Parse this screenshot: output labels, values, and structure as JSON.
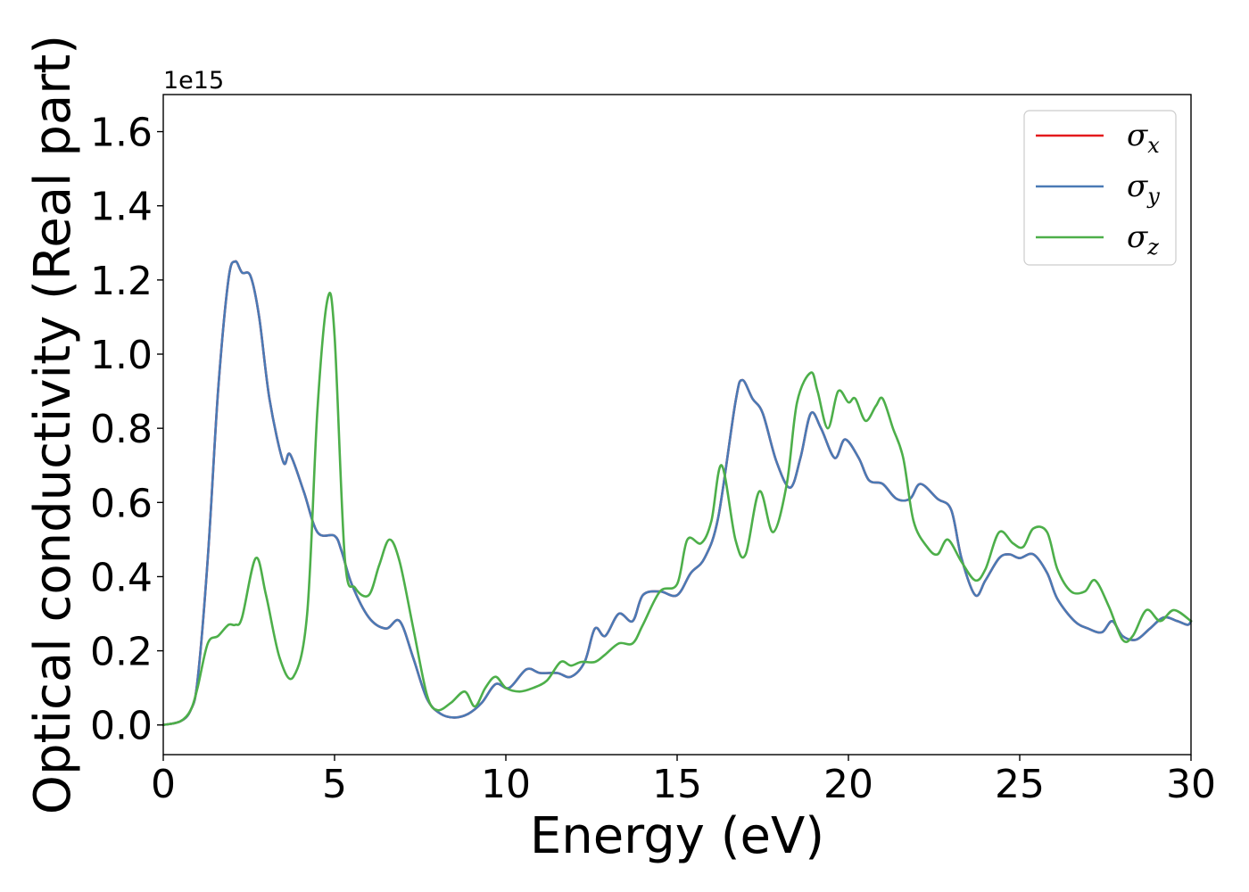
{
  "chart_data": {
    "type": "line",
    "xlabel": "Energy (eV)",
    "ylabel": "Optical conductivity (Real part)",
    "y_offset_text": "1e15",
    "xlim": [
      0,
      30
    ],
    "ylim": [
      -0.08,
      1.7
    ],
    "x_ticks": [
      "0",
      "5",
      "10",
      "15",
      "20",
      "25",
      "30"
    ],
    "y_ticks": [
      "0.0",
      "0.2",
      "0.4",
      "0.6",
      "0.8",
      "1.0",
      "1.2",
      "1.4",
      "1.6"
    ],
    "legend_position": "top-right",
    "grid": false,
    "series": [
      {
        "name": "σ_x",
        "symbol": "σ",
        "subscript": "x",
        "color": "#e41a1c",
        "x": [
          0,
          0.5,
          0.8,
          1.0,
          1.3,
          1.6,
          1.9,
          2.1,
          2.3,
          2.55,
          2.8,
          3.1,
          3.5,
          3.7,
          4.1,
          4.5,
          5.0,
          5.2,
          5.5,
          6.0,
          6.5,
          6.9,
          7.3,
          7.7,
          8.1,
          8.5,
          8.9,
          9.3,
          9.7,
          10.1,
          10.6,
          11.0,
          11.5,
          11.9,
          12.3,
          12.6,
          12.9,
          13.3,
          13.7,
          14.0,
          14.5,
          15.0,
          15.4,
          15.8,
          16.2,
          16.7,
          16.9,
          17.2,
          17.5,
          17.9,
          18.3,
          18.6,
          18.9,
          19.2,
          19.6,
          19.9,
          20.3,
          20.6,
          21.0,
          21.4,
          21.8,
          22.1,
          22.6,
          23.0,
          23.3,
          23.7,
          24.0,
          24.4,
          24.7,
          25.0,
          25.4,
          25.8,
          26.1,
          26.6,
          27.0,
          27.4,
          27.7,
          28.0,
          28.4,
          28.8,
          29.2,
          29.6,
          29.9,
          30.0
        ],
        "y": [
          0.0,
          0.01,
          0.04,
          0.12,
          0.45,
          0.9,
          1.2,
          1.25,
          1.22,
          1.21,
          1.1,
          0.88,
          0.71,
          0.73,
          0.63,
          0.52,
          0.51,
          0.47,
          0.38,
          0.29,
          0.26,
          0.28,
          0.18,
          0.07,
          0.03,
          0.02,
          0.03,
          0.06,
          0.11,
          0.1,
          0.15,
          0.14,
          0.14,
          0.13,
          0.17,
          0.26,
          0.24,
          0.3,
          0.28,
          0.35,
          0.36,
          0.35,
          0.41,
          0.45,
          0.56,
          0.87,
          0.93,
          0.88,
          0.84,
          0.71,
          0.64,
          0.72,
          0.84,
          0.8,
          0.72,
          0.77,
          0.72,
          0.66,
          0.65,
          0.61,
          0.61,
          0.65,
          0.61,
          0.58,
          0.45,
          0.35,
          0.39,
          0.45,
          0.46,
          0.45,
          0.46,
          0.41,
          0.34,
          0.28,
          0.26,
          0.25,
          0.28,
          0.24,
          0.23,
          0.26,
          0.29,
          0.28,
          0.27,
          0.28
        ]
      },
      {
        "name": "σ_y",
        "symbol": "σ",
        "subscript": "y",
        "color": "#4a7ab5",
        "x": [
          0,
          0.5,
          0.8,
          1.0,
          1.3,
          1.6,
          1.9,
          2.1,
          2.3,
          2.55,
          2.8,
          3.1,
          3.5,
          3.7,
          4.1,
          4.5,
          5.0,
          5.2,
          5.5,
          6.0,
          6.5,
          6.9,
          7.3,
          7.7,
          8.1,
          8.5,
          8.9,
          9.3,
          9.7,
          10.1,
          10.6,
          11.0,
          11.5,
          11.9,
          12.3,
          12.6,
          12.9,
          13.3,
          13.7,
          14.0,
          14.5,
          15.0,
          15.4,
          15.8,
          16.2,
          16.7,
          16.9,
          17.2,
          17.5,
          17.9,
          18.3,
          18.6,
          18.9,
          19.2,
          19.6,
          19.9,
          20.3,
          20.6,
          21.0,
          21.4,
          21.8,
          22.1,
          22.6,
          23.0,
          23.3,
          23.7,
          24.0,
          24.4,
          24.7,
          25.0,
          25.4,
          25.8,
          26.1,
          26.6,
          27.0,
          27.4,
          27.7,
          28.0,
          28.4,
          28.8,
          29.2,
          29.6,
          29.9,
          30.0
        ],
        "y": [
          0.0,
          0.01,
          0.04,
          0.12,
          0.45,
          0.9,
          1.2,
          1.25,
          1.22,
          1.21,
          1.1,
          0.88,
          0.71,
          0.73,
          0.63,
          0.52,
          0.51,
          0.47,
          0.38,
          0.29,
          0.26,
          0.28,
          0.18,
          0.07,
          0.03,
          0.02,
          0.03,
          0.06,
          0.11,
          0.1,
          0.15,
          0.14,
          0.14,
          0.13,
          0.17,
          0.26,
          0.24,
          0.3,
          0.28,
          0.35,
          0.36,
          0.35,
          0.41,
          0.45,
          0.56,
          0.87,
          0.93,
          0.88,
          0.84,
          0.71,
          0.64,
          0.72,
          0.84,
          0.8,
          0.72,
          0.77,
          0.72,
          0.66,
          0.65,
          0.61,
          0.61,
          0.65,
          0.61,
          0.58,
          0.45,
          0.35,
          0.39,
          0.45,
          0.46,
          0.45,
          0.46,
          0.41,
          0.34,
          0.28,
          0.26,
          0.25,
          0.28,
          0.24,
          0.23,
          0.26,
          0.29,
          0.28,
          0.27,
          0.28
        ]
      },
      {
        "name": "σ_z",
        "symbol": "σ",
        "subscript": "z",
        "color": "#4daf4a",
        "x": [
          0,
          0.5,
          0.8,
          1.0,
          1.3,
          1.6,
          1.9,
          2.1,
          2.3,
          2.7,
          3.0,
          3.4,
          3.8,
          4.2,
          4.5,
          4.8,
          5.0,
          5.3,
          5.6,
          6.0,
          6.3,
          6.6,
          6.9,
          7.3,
          7.7,
          8.0,
          8.4,
          8.8,
          9.1,
          9.4,
          9.7,
          10.0,
          10.4,
          10.8,
          11.2,
          11.6,
          11.9,
          12.2,
          12.6,
          12.9,
          13.3,
          13.7,
          14.0,
          14.5,
          15.0,
          15.3,
          15.7,
          16.0,
          16.3,
          16.7,
          17.0,
          17.4,
          17.8,
          18.2,
          18.5,
          18.9,
          19.1,
          19.4,
          19.7,
          20.0,
          20.2,
          20.5,
          20.8,
          21.0,
          21.3,
          21.6,
          21.9,
          22.3,
          22.6,
          22.9,
          23.3,
          23.7,
          24.0,
          24.4,
          24.8,
          25.1,
          25.4,
          25.8,
          26.1,
          26.5,
          26.9,
          27.2,
          27.6,
          28.0,
          28.3,
          28.7,
          29.1,
          29.5,
          30.0
        ],
        "y": [
          0.0,
          0.01,
          0.04,
          0.1,
          0.22,
          0.24,
          0.27,
          0.27,
          0.29,
          0.45,
          0.35,
          0.18,
          0.13,
          0.3,
          0.85,
          1.15,
          1.05,
          0.45,
          0.37,
          0.35,
          0.43,
          0.5,
          0.44,
          0.26,
          0.08,
          0.04,
          0.06,
          0.09,
          0.05,
          0.1,
          0.13,
          0.1,
          0.09,
          0.1,
          0.12,
          0.17,
          0.16,
          0.17,
          0.17,
          0.19,
          0.22,
          0.22,
          0.27,
          0.36,
          0.38,
          0.5,
          0.49,
          0.55,
          0.7,
          0.5,
          0.46,
          0.63,
          0.52,
          0.65,
          0.87,
          0.95,
          0.9,
          0.8,
          0.9,
          0.87,
          0.88,
          0.82,
          0.86,
          0.88,
          0.8,
          0.72,
          0.55,
          0.48,
          0.46,
          0.5,
          0.44,
          0.39,
          0.42,
          0.52,
          0.49,
          0.48,
          0.53,
          0.52,
          0.42,
          0.36,
          0.36,
          0.39,
          0.32,
          0.23,
          0.24,
          0.31,
          0.28,
          0.31,
          0.28
        ]
      }
    ]
  }
}
